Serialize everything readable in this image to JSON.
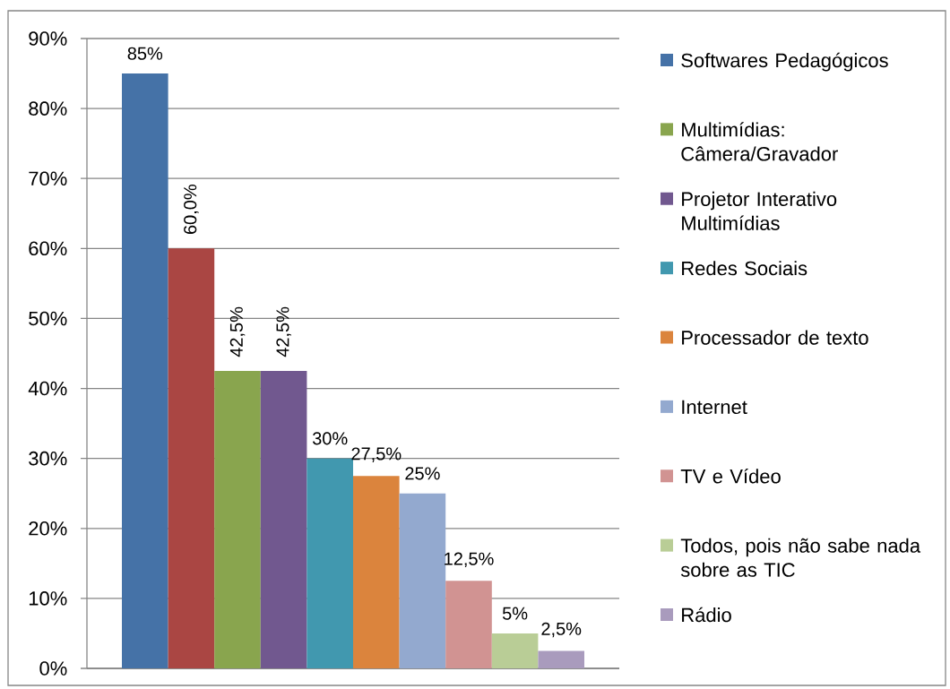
{
  "chart_data": {
    "type": "bar",
    "categories": [
      null
    ],
    "series": [
      {
        "name": "Softwares Pedagógicos",
        "color": "#4572a7",
        "values": [
          85
        ],
        "value_labels": [
          "85%"
        ]
      },
      {
        "color": "#aa4643",
        "values": [
          60
        ],
        "value_labels": [
          "60,0%"
        ]
      },
      {
        "name": "Multimídias: Câmera/Gravador",
        "color": "#89a54e",
        "values": [
          42.5
        ],
        "value_labels": [
          "42,5%"
        ]
      },
      {
        "name": "Projetor Interativo Multimídias",
        "color": "#71588f",
        "values": [
          42.5
        ],
        "value_labels": [
          "42,5%"
        ]
      },
      {
        "name": "Redes Sociais",
        "color": "#4198af",
        "values": [
          30
        ],
        "value_labels": [
          "30%"
        ]
      },
      {
        "name": "Processador de texto",
        "color": "#db843d",
        "values": [
          27.5
        ],
        "value_labels": [
          "27,5%"
        ]
      },
      {
        "name": "Internet",
        "color": "#93a9cf",
        "values": [
          25
        ],
        "value_labels": [
          "25%"
        ]
      },
      {
        "name": "TV e Vídeo",
        "color": "#d19392",
        "values": [
          12.5
        ],
        "value_labels": [
          "12,5%"
        ]
      },
      {
        "name": "Todos, pois não sabe nada sobre as TIC",
        "color": "#b9cd96",
        "values": [
          5
        ],
        "value_labels": [
          "5%"
        ]
      },
      {
        "name": "Rádio",
        "color": "#a99bbd",
        "values": [
          2.5
        ],
        "value_labels": [
          "2,5%"
        ]
      }
    ],
    "ylim": [
      0,
      90
    ],
    "yticks": [
      {
        "value": 0,
        "label": "0%"
      },
      {
        "value": 10,
        "label": "10%"
      },
      {
        "value": 20,
        "label": "20%"
      },
      {
        "value": 30,
        "label": "30%"
      },
      {
        "value": 40,
        "label": "40%"
      },
      {
        "value": 50,
        "label": "50%"
      },
      {
        "value": 60,
        "label": "60%"
      },
      {
        "value": 70,
        "label": "70%"
      },
      {
        "value": 80,
        "label": "80%"
      },
      {
        "value": 90,
        "label": "90%"
      }
    ],
    "grid": "y",
    "legend": "right"
  }
}
